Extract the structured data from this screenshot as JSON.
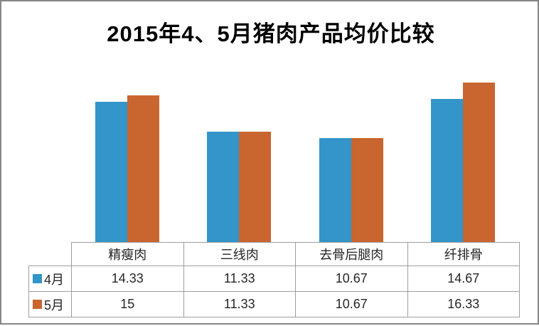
{
  "chart_data": {
    "type": "bar",
    "title": "2015年4、5月猪肉产品均价比较",
    "xlabel": "",
    "ylabel": "",
    "ylim": [
      0,
      18
    ],
    "grid": false,
    "legend_position": "data-table-left",
    "categories": [
      "精瘦肉",
      "三线肉",
      "去骨后腿肉",
      "纤排骨"
    ],
    "series": [
      {
        "name": "4月",
        "color": "#3395C9",
        "values": [
          14.33,
          11.33,
          10.67,
          14.67
        ]
      },
      {
        "name": "5月",
        "color": "#C9652F",
        "values": [
          15,
          11.33,
          10.67,
          16.33
        ]
      }
    ]
  },
  "colors": {
    "frame_border": "#868686",
    "table_border": "#9e9e9e",
    "text": "#262626",
    "title": "#000000"
  }
}
